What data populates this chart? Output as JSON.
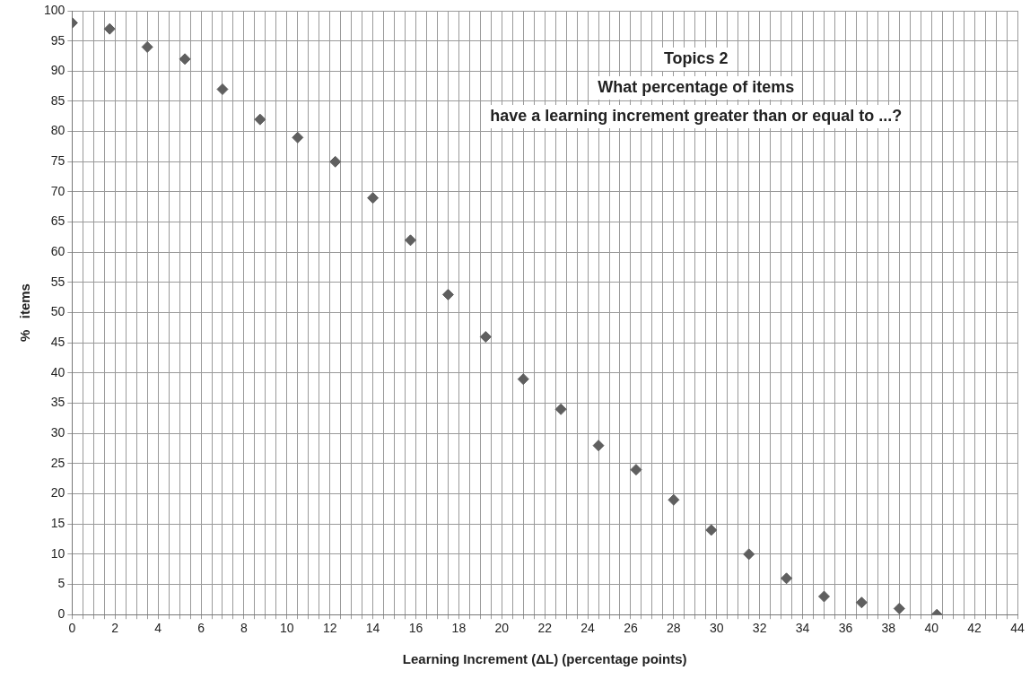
{
  "chart_data": {
    "type": "scatter",
    "title": "Topics 2\nWhat percentage of items\nhave a learning increment greater than or equal to ...?",
    "xlabel": "Learning Increment (ΔL) (percentage points)",
    "ylabel": "%   items",
    "x": [
      0,
      1.75,
      3.5,
      5.25,
      7,
      8.75,
      10.5,
      12.25,
      14,
      15.75,
      17.5,
      19.25,
      21,
      22.75,
      24.5,
      26.25,
      28,
      29.75,
      31.5,
      33.25,
      35,
      36.75,
      38.5,
      40.25
    ],
    "series": [
      {
        "color": "#5f5f5f",
        "values": [
          98,
          97,
          94,
          92,
          87,
          82,
          79,
          75,
          69,
          62,
          53,
          46,
          39,
          34,
          28,
          24,
          19,
          14,
          10,
          6,
          3,
          2,
          1,
          0
        ]
      }
    ],
    "marker": "diamond",
    "grid": true,
    "legend": false,
    "xlim": [
      0,
      44
    ],
    "ylim": [
      0,
      100
    ],
    "yticks": [
      0,
      5,
      10,
      15,
      20,
      25,
      30,
      35,
      40,
      45,
      50,
      55,
      60,
      65,
      70,
      75,
      80,
      85,
      90,
      95,
      100
    ],
    "xticks": [
      0,
      {
        "value": 0.5,
        "label": null
      },
      {
        "value": 1,
        "label": null
      },
      {
        "value": 1.5,
        "label": null
      },
      2,
      {
        "value": 2.5,
        "label": null
      },
      {
        "value": 3,
        "label": null
      },
      {
        "value": 3.5,
        "label": null
      },
      4,
      {
        "value": 4.5,
        "label": null
      },
      {
        "value": 5,
        "label": null
      },
      {
        "value": 5.5,
        "label": null
      },
      6,
      {
        "value": 6.5,
        "label": null
      },
      {
        "value": 7,
        "label": null
      },
      {
        "value": 7.5,
        "label": null
      },
      8,
      {
        "value": 8.5,
        "label": null
      },
      {
        "value": 9,
        "label": null
      },
      {
        "value": 9.5,
        "label": null
      },
      10,
      {
        "value": 10.5,
        "label": null
      },
      {
        "value": 11,
        "label": null
      },
      {
        "value": 11.5,
        "label": null
      },
      12,
      {
        "value": 12.5,
        "label": null
      },
      {
        "value": 13,
        "label": null
      },
      {
        "value": 13.5,
        "label": null
      },
      14,
      {
        "value": 14.5,
        "label": null
      },
      {
        "value": 15,
        "label": null
      },
      {
        "value": 15.5,
        "label": null
      },
      16,
      {
        "value": 16.5,
        "label": null
      },
      {
        "value": 17,
        "label": null
      },
      {
        "value": 17.5,
        "label": null
      },
      18,
      {
        "value": 18.5,
        "label": null
      },
      {
        "value": 19,
        "label": null
      },
      {
        "value": 19.5,
        "label": null
      },
      20,
      {
        "value": 20.5,
        "label": null
      },
      {
        "value": 21,
        "label": null
      },
      {
        "value": 21.5,
        "label": null
      },
      22,
      {
        "value": 22.5,
        "label": null
      },
      {
        "value": 23,
        "label": null
      },
      {
        "value": 23.5,
        "label": null
      },
      24,
      {
        "value": 24.5,
        "label": null
      },
      {
        "value": 25,
        "label": null
      },
      {
        "value": 25.5,
        "label": null
      },
      26,
      {
        "value": 26.5,
        "label": null
      },
      {
        "value": 27,
        "label": null
      },
      {
        "value": 27.5,
        "label": null
      },
      28,
      {
        "value": 28.5,
        "label": null
      },
      {
        "value": 29,
        "label": null
      },
      {
        "value": 29.5,
        "label": null
      },
      30,
      {
        "value": 30.5,
        "label": null
      },
      {
        "value": 31,
        "label": null
      },
      {
        "value": 31.5,
        "label": null
      },
      32,
      {
        "value": 32.5,
        "label": null
      },
      {
        "value": 33,
        "label": null
      },
      {
        "value": 33.5,
        "label": null
      },
      34,
      {
        "value": 34.5,
        "label": null
      },
      {
        "value": 35,
        "label": null
      },
      {
        "value": 35.5,
        "label": null
      },
      36,
      {
        "value": 36.5,
        "label": null
      },
      {
        "value": 37,
        "label": null
      },
      {
        "value": 37.5,
        "label": null
      },
      38,
      {
        "value": 38.5,
        "label": null
      },
      {
        "value": 39,
        "label": null
      },
      {
        "value": 39.5,
        "label": null
      },
      40,
      {
        "value": 40.5,
        "label": null
      },
      {
        "value": 41,
        "label": null
      },
      {
        "value": 41.5,
        "label": null
      },
      42,
      {
        "value": 42.5,
        "label": null
      },
      {
        "value": 43,
        "label": null
      },
      {
        "value": 43.5,
        "label": null
      },
      44
    ]
  }
}
